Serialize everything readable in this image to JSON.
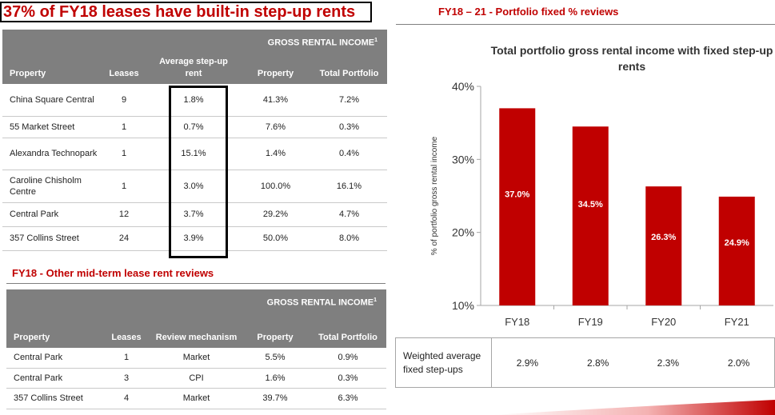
{
  "headline": "37% of FY18 leases have built-in step-up rents",
  "stepup_table": {
    "group_header": "GROSS RENTAL INCOME",
    "group_header_sup": "1",
    "columns": [
      "Property",
      "Leases",
      "Average step-up rent",
      "Property",
      "Total Portfolio"
    ],
    "rows": [
      {
        "property": "China Square Central",
        "leases": "9",
        "avg_stepup": "1.8%",
        "prop_pct": "41.3%",
        "total_pct": "7.2%"
      },
      {
        "property": "55 Market Street",
        "leases": "1",
        "avg_stepup": "0.7%",
        "prop_pct": "7.6%",
        "total_pct": "0.3%"
      },
      {
        "property": "Alexandra Technopark",
        "leases": "1",
        "avg_stepup": "15.1%",
        "prop_pct": "1.4%",
        "total_pct": "0.4%"
      },
      {
        "property": "Caroline Chisholm Centre",
        "leases": "1",
        "avg_stepup": "3.0%",
        "prop_pct": "100.0%",
        "total_pct": "16.1%"
      },
      {
        "property": "Central Park",
        "leases": "12",
        "avg_stepup": "3.7%",
        "prop_pct": "29.2%",
        "total_pct": "4.7%"
      },
      {
        "property": "357 Collins Street",
        "leases": "24",
        "avg_stepup": "3.9%",
        "prop_pct": "50.0%",
        "total_pct": "8.0%"
      }
    ]
  },
  "midterm": {
    "title": "FY18 - Other mid-term lease rent reviews",
    "group_header": "GROSS RENTAL INCOME",
    "group_header_sup": "1",
    "columns": [
      "Property",
      "Leases",
      "Review mechanism",
      "Property",
      "Total Portfolio"
    ],
    "rows": [
      {
        "property": "Central Park",
        "leases": "1",
        "mechanism": "Market",
        "prop_pct": "5.5%",
        "total_pct": "0.9%"
      },
      {
        "property": "Central Park",
        "leases": "3",
        "mechanism": "CPI",
        "prop_pct": "1.6%",
        "total_pct": "0.3%"
      },
      {
        "property": "357 Collins Street",
        "leases": "4",
        "mechanism": "Market",
        "prop_pct": "39.7%",
        "total_pct": "6.3%"
      }
    ]
  },
  "right_section_title": "FY18 – 21 - Portfolio fixed % reviews",
  "chart_data": {
    "type": "bar",
    "title": "Total portfolio gross rental income with fixed step-up rents",
    "categories": [
      "FY18",
      "FY19",
      "FY20",
      "FY21"
    ],
    "values": [
      37.0,
      34.5,
      26.3,
      24.9
    ],
    "value_labels": [
      "37.0%",
      "34.5%",
      "26.3%",
      "24.9%"
    ],
    "xlabel": "",
    "ylabel": "% of portfolio gross rental income",
    "ylim": [
      10,
      40
    ],
    "yticks": [
      10,
      20,
      30,
      40
    ],
    "ytick_labels": [
      "10%",
      "20%",
      "30%",
      "40%"
    ],
    "bar_color": "#c00000",
    "grid": false,
    "legend": "none"
  },
  "weighted": {
    "label": "Weighted average fixed step-ups",
    "values": [
      "2.9%",
      "2.8%",
      "2.3%",
      "2.0%"
    ]
  },
  "colors": {
    "accent": "#c00000",
    "header_gray": "#7f7f7f"
  }
}
